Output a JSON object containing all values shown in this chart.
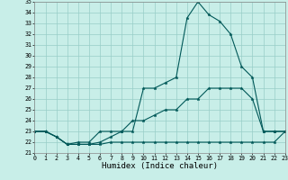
{
  "xlabel": "Humidex (Indice chaleur)",
  "xlim": [
    0,
    23
  ],
  "ylim": [
    21,
    35
  ],
  "xticks": [
    0,
    1,
    2,
    3,
    4,
    5,
    6,
    7,
    8,
    9,
    10,
    11,
    12,
    13,
    14,
    15,
    16,
    17,
    18,
    19,
    20,
    21,
    22,
    23
  ],
  "yticks": [
    21,
    22,
    23,
    24,
    25,
    26,
    27,
    28,
    29,
    30,
    31,
    32,
    33,
    34,
    35
  ],
  "background_color": "#c8eee8",
  "grid_color": "#98cec8",
  "line_color": "#005858",
  "line1_x": [
    0,
    1,
    2,
    3,
    4,
    5,
    6,
    7,
    8,
    9,
    10,
    11,
    12,
    13,
    14,
    15,
    16,
    17,
    18,
    19,
    20,
    21,
    22,
    23
  ],
  "line1_y": [
    23,
    23,
    22.5,
    21.8,
    21.8,
    21.8,
    22,
    22.5,
    23,
    23,
    27,
    27,
    27.5,
    28,
    33.5,
    35,
    33.8,
    33.2,
    32,
    29,
    28,
    23,
    23,
    23
  ],
  "line2_x": [
    0,
    1,
    2,
    3,
    4,
    5,
    6,
    7,
    8,
    9,
    10,
    11,
    12,
    13,
    14,
    15,
    16,
    17,
    18,
    19,
    20,
    21,
    22,
    23
  ],
  "line2_y": [
    23,
    23,
    22.5,
    21.8,
    22,
    22,
    23,
    23,
    23,
    24,
    24,
    24.5,
    25,
    25,
    26,
    26,
    27,
    27,
    27,
    27,
    26,
    23,
    23,
    23
  ],
  "line3_x": [
    0,
    1,
    2,
    3,
    4,
    5,
    6,
    7,
    8,
    9,
    10,
    11,
    12,
    13,
    14,
    15,
    16,
    17,
    18,
    19,
    20,
    21,
    22,
    23
  ],
  "line3_y": [
    23,
    23,
    22.5,
    21.8,
    21.8,
    21.8,
    21.8,
    22,
    22,
    22,
    22,
    22,
    22,
    22,
    22,
    22,
    22,
    22,
    22,
    22,
    22,
    22,
    22,
    23
  ],
  "marker": "*",
  "marker_size": 2.5,
  "linewidth": 0.8,
  "tick_fontsize": 4.8,
  "label_fontsize": 6.5,
  "label_fontfamily": "monospace"
}
